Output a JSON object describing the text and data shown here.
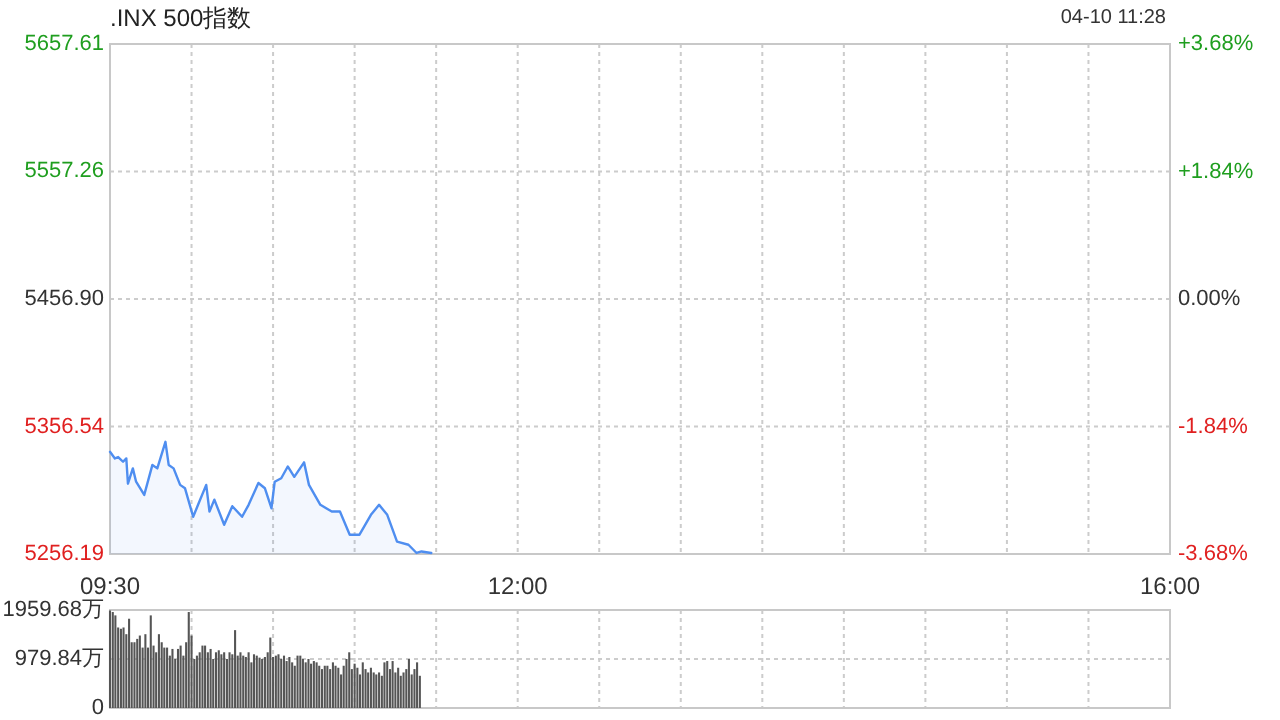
{
  "chart_data": [
    {
      "type": "area",
      "title": ".INX 500指数",
      "annotations": [
        "04-10 11:28"
      ],
      "x": [
        9.5,
        9.53,
        9.55,
        9.58,
        9.6,
        9.61,
        9.64,
        9.66,
        9.71,
        9.76,
        9.79,
        9.84,
        9.86,
        9.89,
        9.93,
        9.96,
        10.01,
        10.04,
        10.09,
        10.11,
        10.14,
        10.2,
        10.25,
        10.31,
        10.35,
        10.41,
        10.45,
        10.49,
        10.51,
        10.55,
        10.59,
        10.63,
        10.69,
        10.72,
        10.79,
        10.86,
        10.91,
        10.97,
        11.03,
        11.1,
        11.15,
        11.2,
        11.26,
        11.33,
        11.38,
        11.41,
        11.47
      ],
      "series": [
        {
          "color": "#4f8ef0",
          "values": [
            5336.6,
            5331.4,
            5332.5,
            5328.8,
            5331.4,
            5311.5,
            5323.6,
            5313.1,
            5302.7,
            5326.3,
            5323.6,
            5344.5,
            5326.3,
            5323.6,
            5310.6,
            5307.9,
            5285.5,
            5294.9,
            5310.6,
            5289.6,
            5299.0,
            5279.2,
            5293.8,
            5285.5,
            5294.9,
            5312.1,
            5307.9,
            5292.2,
            5313.1,
            5315.8,
            5325.1,
            5316.9,
            5328.3,
            5310.6,
            5294.9,
            5289.6,
            5289.6,
            5271.4,
            5271.4,
            5287.0,
            5294.9,
            5287.0,
            5266.0,
            5263.5,
            5257.0,
            5258.2,
            5257.0
          ]
        }
      ],
      "xlim": [
        9.5,
        16
      ],
      "xticks": [
        {
          "value": 9.5,
          "label": "09:30"
        },
        {
          "value": 10,
          "label": null
        },
        {
          "value": 10.5,
          "label": null
        },
        {
          "value": 11,
          "label": null
        },
        {
          "value": 11.5,
          "label": null
        },
        {
          "value": 12,
          "label": "12:00"
        },
        {
          "value": 12.5,
          "label": null
        },
        {
          "value": 13,
          "label": null
        },
        {
          "value": 13.5,
          "label": null
        },
        {
          "value": 14,
          "label": null
        },
        {
          "value": 14.5,
          "label": null
        },
        {
          "value": 15,
          "label": null
        },
        {
          "value": 15.5,
          "label": null
        },
        {
          "value": 16,
          "label": "16:00"
        }
      ],
      "ylim": [
        5256.19,
        5657.61
      ],
      "yticks": [
        5256.19,
        5356.54,
        {
          "value": 5456.9,
          "label": "5456.90"
        },
        5557.26,
        5657.61
      ],
      "y2lim": [
        -3.68,
        3.68
      ],
      "y2ticks": [
        {
          "value": -3.68,
          "label": "-3.68%"
        },
        {
          "value": -1.84,
          "label": "-1.84%"
        },
        {
          "value": 0,
          "label": "0.00%"
        },
        {
          "value": 1.84,
          "label": "+1.84%"
        },
        {
          "value": 3.68,
          "label": "+3.68%"
        }
      ],
      "grid": true
    },
    {
      "type": "bar",
      "color": "#555555",
      "x": [
        9.5,
        9.517,
        9.533,
        9.55,
        9.567,
        9.583,
        9.6,
        9.617,
        9.633,
        9.65,
        9.667,
        9.683,
        9.7,
        9.717,
        9.733,
        9.75,
        9.767,
        9.783,
        9.8,
        9.817,
        9.833,
        9.85,
        9.867,
        9.883,
        9.9,
        9.917,
        9.933,
        9.95,
        9.967,
        9.983,
        10,
        10.017,
        10.033,
        10.05,
        10.067,
        10.083,
        10.1,
        10.117,
        10.133,
        10.15,
        10.167,
        10.183,
        10.2,
        10.217,
        10.233,
        10.25,
        10.267,
        10.283,
        10.3,
        10.317,
        10.333,
        10.35,
        10.367,
        10.383,
        10.4,
        10.417,
        10.433,
        10.45,
        10.467,
        10.483,
        10.5,
        10.517,
        10.533,
        10.55,
        10.567,
        10.583,
        10.6,
        10.617,
        10.633,
        10.65,
        10.667,
        10.683,
        10.7,
        10.717,
        10.733,
        10.75,
        10.767,
        10.783,
        10.8,
        10.817,
        10.833,
        10.85,
        10.867,
        10.883,
        10.9,
        10.917,
        10.933,
        10.95,
        10.967,
        10.983,
        11,
        11.017,
        11.033,
        11.05,
        11.067,
        11.083,
        11.1,
        11.117,
        11.133,
        11.15,
        11.167,
        11.183,
        11.2,
        11.217,
        11.233,
        11.25,
        11.267,
        11.283,
        11.3,
        11.317,
        11.333,
        11.35,
        11.367,
        11.383,
        11.4
      ],
      "values": [
        1950,
        1919,
        1852,
        1610,
        1584,
        1610,
        1476,
        1785,
        1315,
        1315,
        1382,
        1449,
        1208,
        1476,
        1208,
        1852,
        1248,
        1114,
        1476,
        1315,
        1208,
        1208,
        1047,
        1181,
        980,
        1181,
        1248,
        1047,
        1315,
        1919,
        1449,
        980,
        1047,
        1114,
        1248,
        1248,
        1114,
        1181,
        980,
        1114,
        1154,
        1074,
        1114,
        980,
        1114,
        1074,
        1557,
        1047,
        1114,
        1047,
        1020,
        1114,
        913,
        1074,
        1047,
        1007,
        980,
        1020,
        1114,
        1409,
        1020,
        1047,
        1074,
        980,
        1047,
        939,
        1020,
        913,
        845,
        1047,
        1047,
        980,
        913,
        980,
        886,
        939,
        913,
        845,
        778,
        845,
        845,
        778,
        913,
        845,
        805,
        671,
        845,
        980,
        1114,
        778,
        886,
        805,
        671,
        913,
        778,
        711,
        805,
        711,
        671,
        711,
        644,
        913,
        939,
        778,
        939,
        711,
        805,
        644,
        711,
        778,
        980,
        671,
        778,
        913,
        644
      ],
      "xlim": [
        9.5,
        16
      ],
      "xticks": [
        {
          "value": 9.5,
          "label": null
        },
        {
          "value": 10,
          "label": null
        },
        {
          "value": 10.5,
          "label": null
        },
        {
          "value": 11,
          "label": null
        },
        {
          "value": 11.5,
          "label": null
        },
        {
          "value": 12,
          "label": null
        },
        {
          "value": 12.5,
          "label": null
        },
        {
          "value": 13,
          "label": null
        },
        {
          "value": 13.5,
          "label": null
        },
        {
          "value": 14,
          "label": null
        },
        {
          "value": 14.5,
          "label": null
        },
        {
          "value": 15,
          "label": null
        },
        {
          "value": 15.5,
          "label": null
        },
        {
          "value": 16,
          "label": null
        }
      ],
      "ylim": [
        0,
        1959.68
      ],
      "yticks": [
        0,
        {
          "value": 979.84,
          "label": "979.84万"
        },
        {
          "value": 1959.68,
          "label": "1959.68万"
        }
      ],
      "tick_labels": "y",
      "grid": true
    }
  ]
}
